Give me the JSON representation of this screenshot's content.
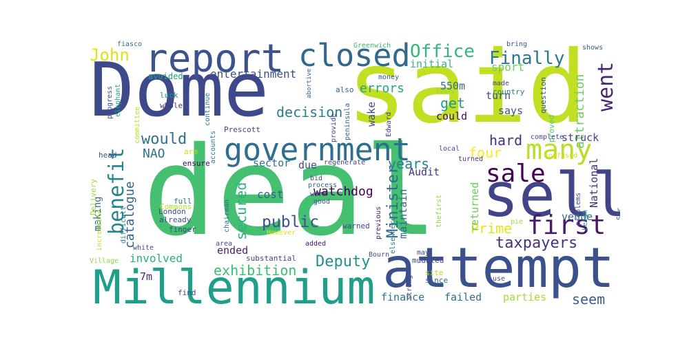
{
  "words": [
    {
      "text": "said",
      "color": "#c2df23"
    },
    {
      "text": "deal",
      "color": "#45bf70"
    },
    {
      "text": "Dome",
      "color": "#3e4989"
    },
    {
      "text": "attempt",
      "color": "#3b518b"
    },
    {
      "text": "Millennium",
      "color": "#1f9e89"
    },
    {
      "text": "sell",
      "color": "#414487"
    },
    {
      "text": "report",
      "color": "#3b528b"
    },
    {
      "text": "government",
      "color": "#2e6e8e"
    },
    {
      "text": "closed",
      "color": "#31688e"
    },
    {
      "text": "many",
      "color": "#b8de29"
    },
    {
      "text": "benefit",
      "color": "#25858e"
    },
    {
      "text": "first",
      "color": "#481a6c"
    },
    {
      "text": "sale",
      "color": "#440154"
    },
    {
      "text": "went",
      "color": "#482677"
    },
    {
      "text": "Office",
      "color": "#35b779"
    },
    {
      "text": "Finally",
      "color": "#2a788e"
    },
    {
      "text": "John",
      "color": "#dde318"
    },
    {
      "text": "public",
      "color": "#3a538b"
    },
    {
      "text": "would",
      "color": "#2c728e"
    },
    {
      "text": "Minister",
      "color": "#2f6b8e"
    },
    {
      "text": "taxpayers",
      "color": "#46327e"
    },
    {
      "text": "Deputy",
      "color": "#21908d"
    },
    {
      "text": "exhibition",
      "color": "#3dbc74"
    },
    {
      "text": "secured",
      "color": "#2db27d"
    },
    {
      "text": "years",
      "color": "#277f8e"
    },
    {
      "text": "Prime",
      "color": "#e5e419"
    },
    {
      "text": "decision",
      "color": "#287c8e"
    },
    {
      "text": "get",
      "color": "#1e9b8a"
    },
    {
      "text": "four",
      "color": "#fde725"
    },
    {
      "text": "hard",
      "color": "#472f7d"
    },
    {
      "text": "seem",
      "color": "#365d8d"
    },
    {
      "text": "attraction",
      "color": "#6ccd5a"
    },
    {
      "text": "catalogue",
      "color": "#33638d"
    },
    {
      "text": "NAO",
      "color": "#2c728e"
    },
    {
      "text": "errors",
      "color": "#20a386"
    },
    {
      "text": "watchdog",
      "color": "#440154"
    },
    {
      "text": "entertainment",
      "color": "#3e4c8a"
    },
    {
      "text": "cost",
      "color": "#33638d"
    },
    {
      "text": "involved",
      "color": "#29af7f"
    },
    {
      "text": "sport",
      "color": "#6ccd5a"
    },
    {
      "text": "sector",
      "color": "#2c728e"
    },
    {
      "text": "finance",
      "color": "#2c728e"
    },
    {
      "text": "failed",
      "color": "#2d708e"
    },
    {
      "text": "parties",
      "color": "#a8db34"
    },
    {
      "text": "struck",
      "color": "#414487"
    },
    {
      "text": "initial",
      "color": "#35b779"
    },
    {
      "text": "550m",
      "color": "#2e6f8e"
    },
    {
      "text": "could",
      "color": "#460b5e"
    },
    {
      "text": "says",
      "color": "#3b528b"
    },
    {
      "text": "turn",
      "color": "#3f4889"
    },
    {
      "text": "Audit",
      "color": "#453781"
    },
    {
      "text": "due",
      "color": "#3b518b"
    },
    {
      "text": "maintain",
      "color": "#31688e"
    },
    {
      "text": "ended",
      "color": "#481d6f"
    },
    {
      "text": "7m",
      "color": "#482677"
    },
    {
      "text": "wake",
      "color": "#3e4989"
    },
    {
      "text": "returned",
      "color": "#6ccd5a"
    },
    {
      "text": "National",
      "color": "#472f7d"
    },
    {
      "text": "venue",
      "color": "#31688e"
    },
    {
      "text": "making",
      "color": "#31688e"
    },
    {
      "text": "Greenwich",
      "color": "#35b779"
    },
    {
      "text": "fiasco",
      "color": "#31688e"
    },
    {
      "text": "bring",
      "color": "#3b518b"
    },
    {
      "text": "shows",
      "color": "#33638d"
    },
    {
      "text": "avoided",
      "color": "#1fa188"
    },
    {
      "text": "money",
      "color": "#3b518b"
    },
    {
      "text": "made",
      "color": "#404688"
    },
    {
      "text": "country",
      "color": "#26828e"
    },
    {
      "text": "question",
      "color": "#3b518b"
    },
    {
      "text": "proved",
      "color": "#5ec962"
    },
    {
      "text": "luck",
      "color": "#21918c"
    },
    {
      "text": "whole",
      "color": "#453781"
    },
    {
      "text": "progress",
      "color": "#3e4989"
    },
    {
      "text": "elephant",
      "color": "#1fa188"
    },
    {
      "text": "committee",
      "color": "#b5de2b"
    },
    {
      "text": "continue",
      "color": "#2a788e"
    },
    {
      "text": "accounts",
      "color": "#2a788e"
    },
    {
      "text": "provide",
      "color": "#3e4989"
    },
    {
      "text": "peninsula",
      "color": "#33638d"
    },
    {
      "text": "also",
      "color": "#31688e"
    },
    {
      "text": "Every",
      "color": "#8fd744"
    },
    {
      "text": "Edward",
      "color": "#433e85"
    },
    {
      "text": "abortive",
      "color": "#33638d"
    },
    {
      "text": "Prescott",
      "color": "#414487"
    },
    {
      "text": "head",
      "color": "#3b528b"
    },
    {
      "text": "arm",
      "color": "#c8e020"
    },
    {
      "text": "ensure",
      "color": "#440154"
    },
    {
      "text": "Delivery",
      "color": "#a0da39"
    },
    {
      "text": "complete",
      "color": "#3e4989"
    },
    {
      "text": "local",
      "color": "#3e4989"
    },
    {
      "text": "turned",
      "color": "#463480"
    },
    {
      "text": "confused",
      "color": "#d8e219"
    },
    {
      "text": "regenerate",
      "color": "#414487"
    },
    {
      "text": "bid",
      "color": "#3e4989"
    },
    {
      "text": "process",
      "color": "#33638d"
    },
    {
      "text": "work",
      "color": "#453781"
    },
    {
      "text": "good",
      "color": "#3b528b"
    },
    {
      "text": "previous",
      "color": "#481a6c"
    },
    {
      "text": "elsewhere",
      "color": "#2c728e"
    },
    {
      "text": "thefirst",
      "color": "#90d743"
    },
    {
      "text": "problems",
      "color": "#3e4989"
    },
    {
      "text": "Leigh",
      "color": "#1f988b"
    },
    {
      "text": "Sir",
      "color": "#3b528b"
    },
    {
      "text": "full",
      "color": "#2c728e"
    },
    {
      "text": "Commons",
      "color": "#b5de2b"
    },
    {
      "text": "London",
      "color": "#414487"
    },
    {
      "text": "already",
      "color": "#3e4989"
    },
    {
      "text": "finger",
      "color": "#3e4989"
    },
    {
      "text": "chairman",
      "color": "#2e6e8e"
    },
    {
      "text": "difficult",
      "color": "#2a788e"
    },
    {
      "text": "incredible",
      "color": "#c2df23"
    },
    {
      "text": "However",
      "color": "#dde318"
    },
    {
      "text": "white",
      "color": "#3e4989"
    },
    {
      "text": "area",
      "color": "#404688"
    },
    {
      "text": "added",
      "color": "#471063"
    },
    {
      "text": "warned",
      "color": "#3e4989"
    },
    {
      "text": "pie",
      "color": "#a0da39"
    },
    {
      "text": "Village",
      "color": "#90d743"
    },
    {
      "text": "substantial",
      "color": "#414487"
    },
    {
      "text": "Bourn",
      "color": "#3e4989"
    },
    {
      "text": "may",
      "color": "#3e4989"
    },
    {
      "text": "muddled",
      "color": "#3e4989"
    },
    {
      "text": "strong",
      "color": "#3e4989"
    },
    {
      "text": "site",
      "color": "#bddf26"
    },
    {
      "text": "since",
      "color": "#2e6e8e"
    },
    {
      "text": "use",
      "color": "#3b518b"
    },
    {
      "text": "find",
      "color": "#3e4989"
    }
  ]
}
